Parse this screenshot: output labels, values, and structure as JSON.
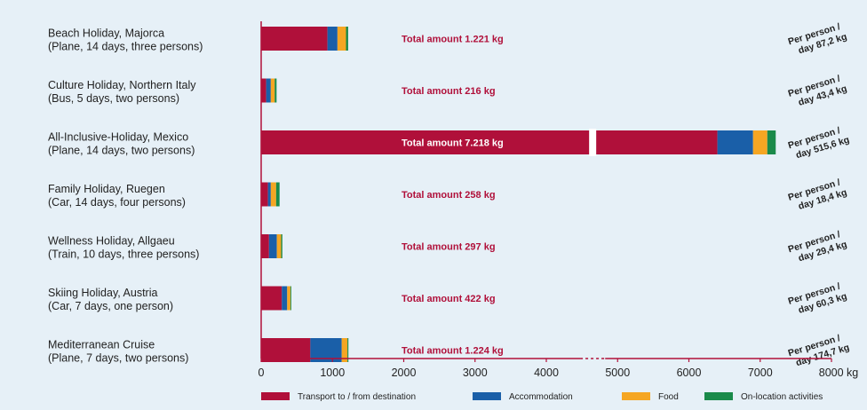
{
  "chart_data": {
    "type": "bar",
    "orientation": "horizontal",
    "stacked": true,
    "xlabel": "",
    "ylabel": "",
    "xlim": [
      0,
      8000
    ],
    "x_ticks": [
      "0",
      "1000",
      "2000",
      "3000",
      "4000",
      "5000",
      "6000",
      "7000",
      "8000 kg"
    ],
    "axis_break_between": [
      4300,
      5000
    ],
    "grid": false,
    "legend_position": "bottom",
    "categories": [
      {
        "line1": "Beach Holiday, Majorca",
        "line2": "(Plane, 14 days, three persons)"
      },
      {
        "line1": "Culture Holiday, Northern Italy",
        "line2": "(Bus, 5 days, two persons)"
      },
      {
        "line1": "All-Inclusive-Holiday, Mexico",
        "line2": "(Plane, 14 days, two persons)"
      },
      {
        "line1": "Family Holiday, Ruegen",
        "line2": "(Car, 14 days, four persons)"
      },
      {
        "line1": "Wellness Holiday, Allgaeu",
        "line2": "(Train, 10 days, three persons)"
      },
      {
        "line1": "Skiing Holiday, Austria",
        "line2": "(Car, 7 days, one person)"
      },
      {
        "line1": "Mediterranean Cruise",
        "line2": "(Plane, 7 days, two persons)"
      }
    ],
    "series": [
      {
        "name": "Transport to / from destination",
        "color": "#b0103a",
        "values": [
          930,
          70,
          6400,
          95,
          110,
          290,
          690
        ]
      },
      {
        "name": "Accommodation",
        "color": "#1a5fa8",
        "values": [
          140,
          65,
          500,
          40,
          110,
          75,
          440
        ]
      },
      {
        "name": "Food",
        "color": "#f5a623",
        "values": [
          120,
          55,
          200,
          75,
          60,
          45,
          80
        ]
      },
      {
        "name": "On-location activities",
        "color": "#1a8a4a",
        "values": [
          30,
          26,
          118,
          48,
          17,
          12,
          14
        ]
      }
    ],
    "totals": [
      "Total amount 1.221 kg",
      "Total amount 216 kg",
      "Total amount 7.218 kg",
      "Total amount 258 kg",
      "Total amount 297 kg",
      "Total amount 422 kg",
      "Total amount 1.224 kg"
    ],
    "per_person": [
      {
        "line1": "Per person /",
        "line2": "day 87,2 kg"
      },
      {
        "line1": "Per person /",
        "line2": "day 43,4 kg"
      },
      {
        "line1": "Per person /",
        "line2": "day 515,6 kg"
      },
      {
        "line1": "Per person /",
        "line2": "day 18,4 kg"
      },
      {
        "line1": "Per person /",
        "line2": "day 29,4 kg"
      },
      {
        "line1": "Per person /",
        "line2": "day 60,3 kg"
      },
      {
        "line1": "Per person /",
        "line2": "day 174,7 kg"
      }
    ]
  }
}
